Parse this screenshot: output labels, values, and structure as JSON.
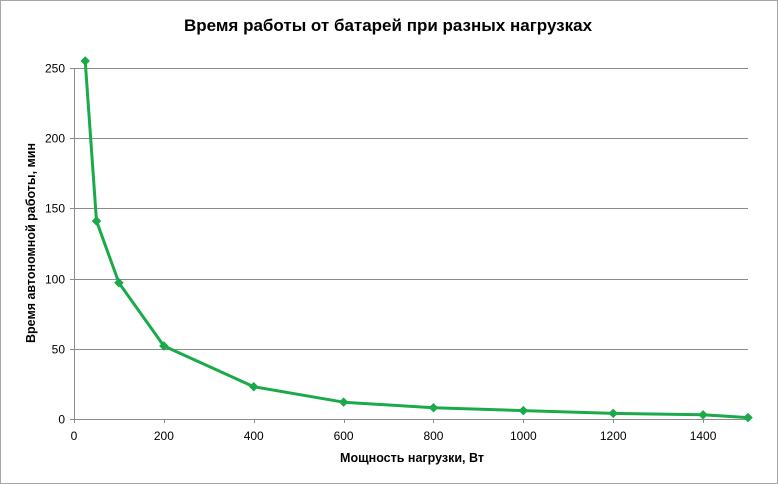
{
  "chart_data": {
    "type": "line",
    "title": "Время работы  от батарей  при разных  нагрузках",
    "xlabel": "Мощность нагрузки, Вт",
    "ylabel": "Время автономной работы, мин",
    "xlim": [
      0,
      1500
    ],
    "ylim": [
      0,
      250
    ],
    "xticks": [
      0,
      200,
      400,
      600,
      800,
      1000,
      1200,
      1400
    ],
    "yticks": [
      0,
      50,
      100,
      150,
      200,
      250
    ],
    "grid": "horizontal",
    "legend": "none",
    "color": "#1aaa4a",
    "marker": "diamond",
    "series": [
      {
        "x": [
          25,
          50,
          100,
          200,
          400,
          600,
          800,
          1000,
          1200,
          1400,
          1500
        ],
        "y": [
          255,
          141,
          97,
          52,
          23,
          12,
          8,
          6,
          4,
          3,
          1
        ]
      }
    ]
  }
}
